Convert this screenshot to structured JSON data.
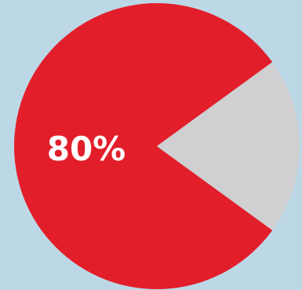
{
  "chart_data": {
    "type": "pie",
    "title": "",
    "slices": [
      {
        "value": 80,
        "label": "80%",
        "color": "#e31e2b"
      },
      {
        "value": 20,
        "label": "",
        "color": "#d0d0d2"
      }
    ]
  },
  "colors": {
    "background": "#bcd8e6"
  }
}
